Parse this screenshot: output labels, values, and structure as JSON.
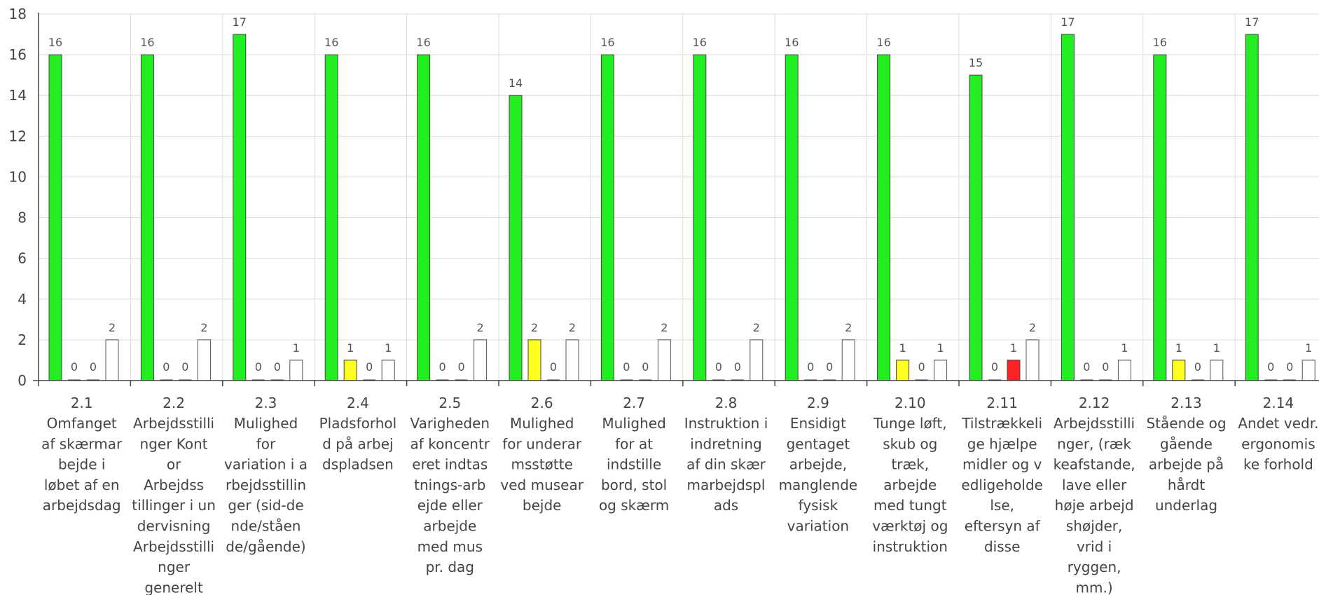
{
  "chart_data": {
    "type": "bar",
    "title": "",
    "xlabel": "",
    "ylabel": "",
    "ylim": [
      0,
      18
    ],
    "yticks": [
      0,
      2,
      4,
      6,
      8,
      10,
      12,
      14,
      16,
      18
    ],
    "grid": true,
    "legend": "none",
    "categories": [
      {
        "code": "2.1",
        "lines": [
          "Omfanget",
          "af skærmar",
          "bejde i",
          "løbet af en",
          "arbejdsdag"
        ]
      },
      {
        "code": "2.2",
        "lines": [
          "Arbejdsstilli",
          "nger Kont",
          "or",
          "Arbejdss",
          "tillinger i un",
          "dervisning",
          "Arbejdsstilli",
          "nger",
          "generelt"
        ]
      },
      {
        "code": "2.3",
        "lines": [
          "Mulighed",
          "for",
          "variation i a",
          "rbejdsstillin",
          "ger (sid-de",
          "nde/ståen",
          "de/gående)"
        ]
      },
      {
        "code": "2.4",
        "lines": [
          "Pladsforhol",
          "d på arbej",
          "dspladsen"
        ]
      },
      {
        "code": "2.5",
        "lines": [
          "Varigheden",
          "af koncentr",
          "eret indtas",
          "tnings-arb",
          "ejde eller",
          "arbejde",
          "med mus",
          "pr. dag"
        ]
      },
      {
        "code": "2.6",
        "lines": [
          "Mulighed",
          "for underar",
          "msstøtte",
          "ved musear",
          "bejde"
        ]
      },
      {
        "code": "2.7",
        "lines": [
          "Mulighed",
          "for at",
          "indstille",
          "bord, stol",
          "og skærm"
        ]
      },
      {
        "code": "2.8",
        "lines": [
          "Instruktion i",
          "indretning",
          "af din skær",
          "marbejdspl",
          "ads"
        ]
      },
      {
        "code": "2.9",
        "lines": [
          "Ensidigt",
          "gentaget",
          "arbejde,",
          "manglende",
          "fysisk",
          "variation"
        ]
      },
      {
        "code": "2.10",
        "lines": [
          "Tunge løft,",
          "skub og",
          "træk,",
          "arbejde",
          "med tungt",
          "værktøj og",
          "instruktion"
        ]
      },
      {
        "code": "2.11",
        "lines": [
          "Tilstrækkeli",
          "ge hjælpe",
          "midler og v",
          "edligeholde",
          "lse,",
          "eftersyn af",
          "disse"
        ]
      },
      {
        "code": "2.12",
        "lines": [
          "Arbejdsstilli",
          "nger, (ræk",
          "keafstande,",
          "lave eller",
          "høje arbejd",
          "shøjder,",
          "vrid i",
          "ryggen,",
          "mm.)"
        ]
      },
      {
        "code": "2.13",
        "lines": [
          "Stående og",
          "gående",
          "arbejde på",
          "hårdt",
          "underlag"
        ]
      },
      {
        "code": "2.14",
        "lines": [
          "Andet vedr.",
          "ergonomis",
          "ke forhold"
        ]
      }
    ],
    "series": [
      {
        "color": "#22ee22",
        "values": [
          16,
          16,
          17,
          16,
          16,
          14,
          16,
          16,
          16,
          16,
          15,
          17,
          16,
          17
        ]
      },
      {
        "color": "#ffff22",
        "values": [
          0,
          0,
          0,
          1,
          0,
          2,
          0,
          0,
          0,
          1,
          0,
          0,
          1,
          0
        ]
      },
      {
        "color": "#ff2222",
        "values": [
          0,
          0,
          0,
          0,
          0,
          0,
          0,
          0,
          0,
          0,
          1,
          0,
          0,
          0
        ]
      },
      {
        "color": "#ffffff",
        "values": [
          2,
          2,
          1,
          1,
          2,
          2,
          2,
          2,
          2,
          1,
          2,
          1,
          1,
          1
        ]
      }
    ]
  }
}
